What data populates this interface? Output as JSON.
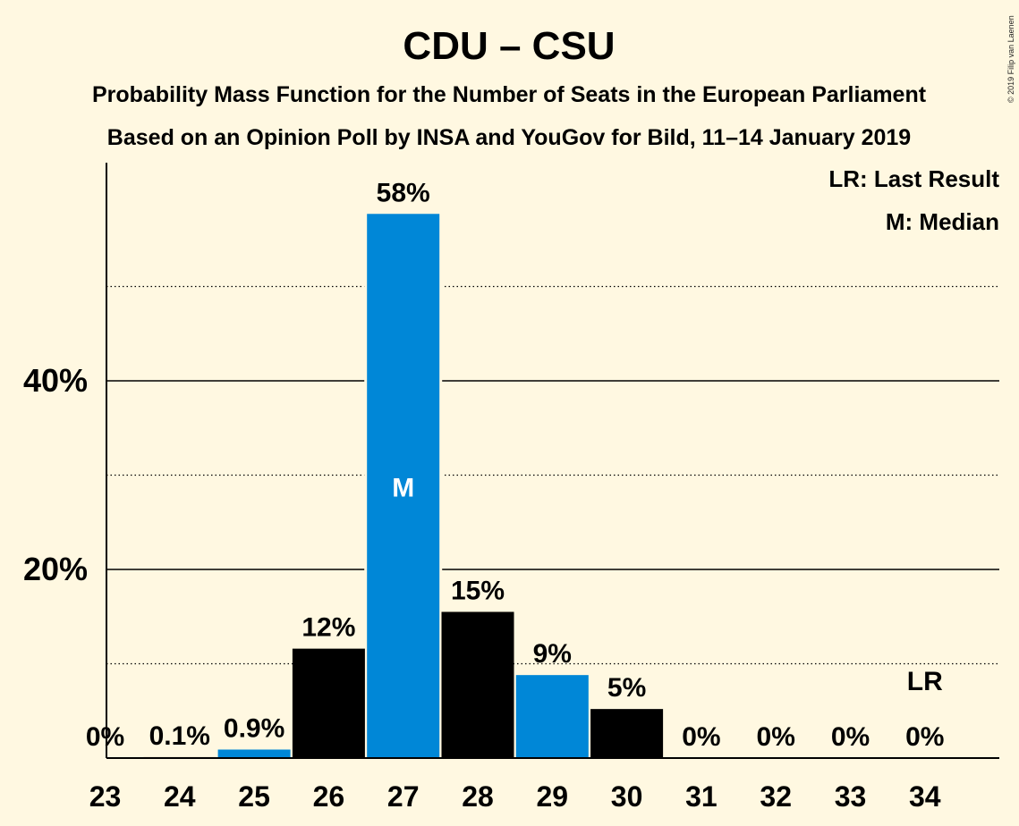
{
  "title": "CDU – CSU",
  "subtitle_1": "Probability Mass Function for the Number of Seats in the European Parliament",
  "subtitle_2": "Based on an Opinion Poll by INSA and YouGov for Bild, 11–14 January 2019",
  "legend": {
    "last_result": "LR: Last Result",
    "median": "M: Median"
  },
  "copyright": "© 2019 Filip van Laenen",
  "colors": {
    "background": "#fff8e1",
    "blue": "#0087d7",
    "black": "#000000",
    "white": "#ffffff"
  },
  "chart_data": {
    "type": "bar",
    "categories": [
      "23",
      "24",
      "25",
      "26",
      "27",
      "28",
      "29",
      "30",
      "31",
      "32",
      "33",
      "34"
    ],
    "values": [
      0,
      0.1,
      0.9,
      11.6,
      57.7,
      15.5,
      8.8,
      5.2,
      0,
      0,
      0,
      0
    ],
    "value_labels": [
      "0%",
      "0.1%",
      "0.9%",
      "12%",
      "58%",
      "15%",
      "9%",
      "5%",
      "0%",
      "0%",
      "0%",
      "0%"
    ],
    "bar_colors": [
      "black",
      "black",
      "blue",
      "black",
      "blue",
      "black",
      "blue",
      "black",
      "black",
      "black",
      "black",
      "black"
    ],
    "ylim": [
      0,
      63
    ],
    "yticks": [
      20,
      40
    ],
    "ytick_labels": [
      "20%",
      "40%"
    ],
    "dotted_gridlines": [
      10,
      30,
      50
    ],
    "median_category": "27",
    "median_marker": "M",
    "last_result_category": "34",
    "last_result_marker": "LR",
    "legend_position": "top-right"
  }
}
